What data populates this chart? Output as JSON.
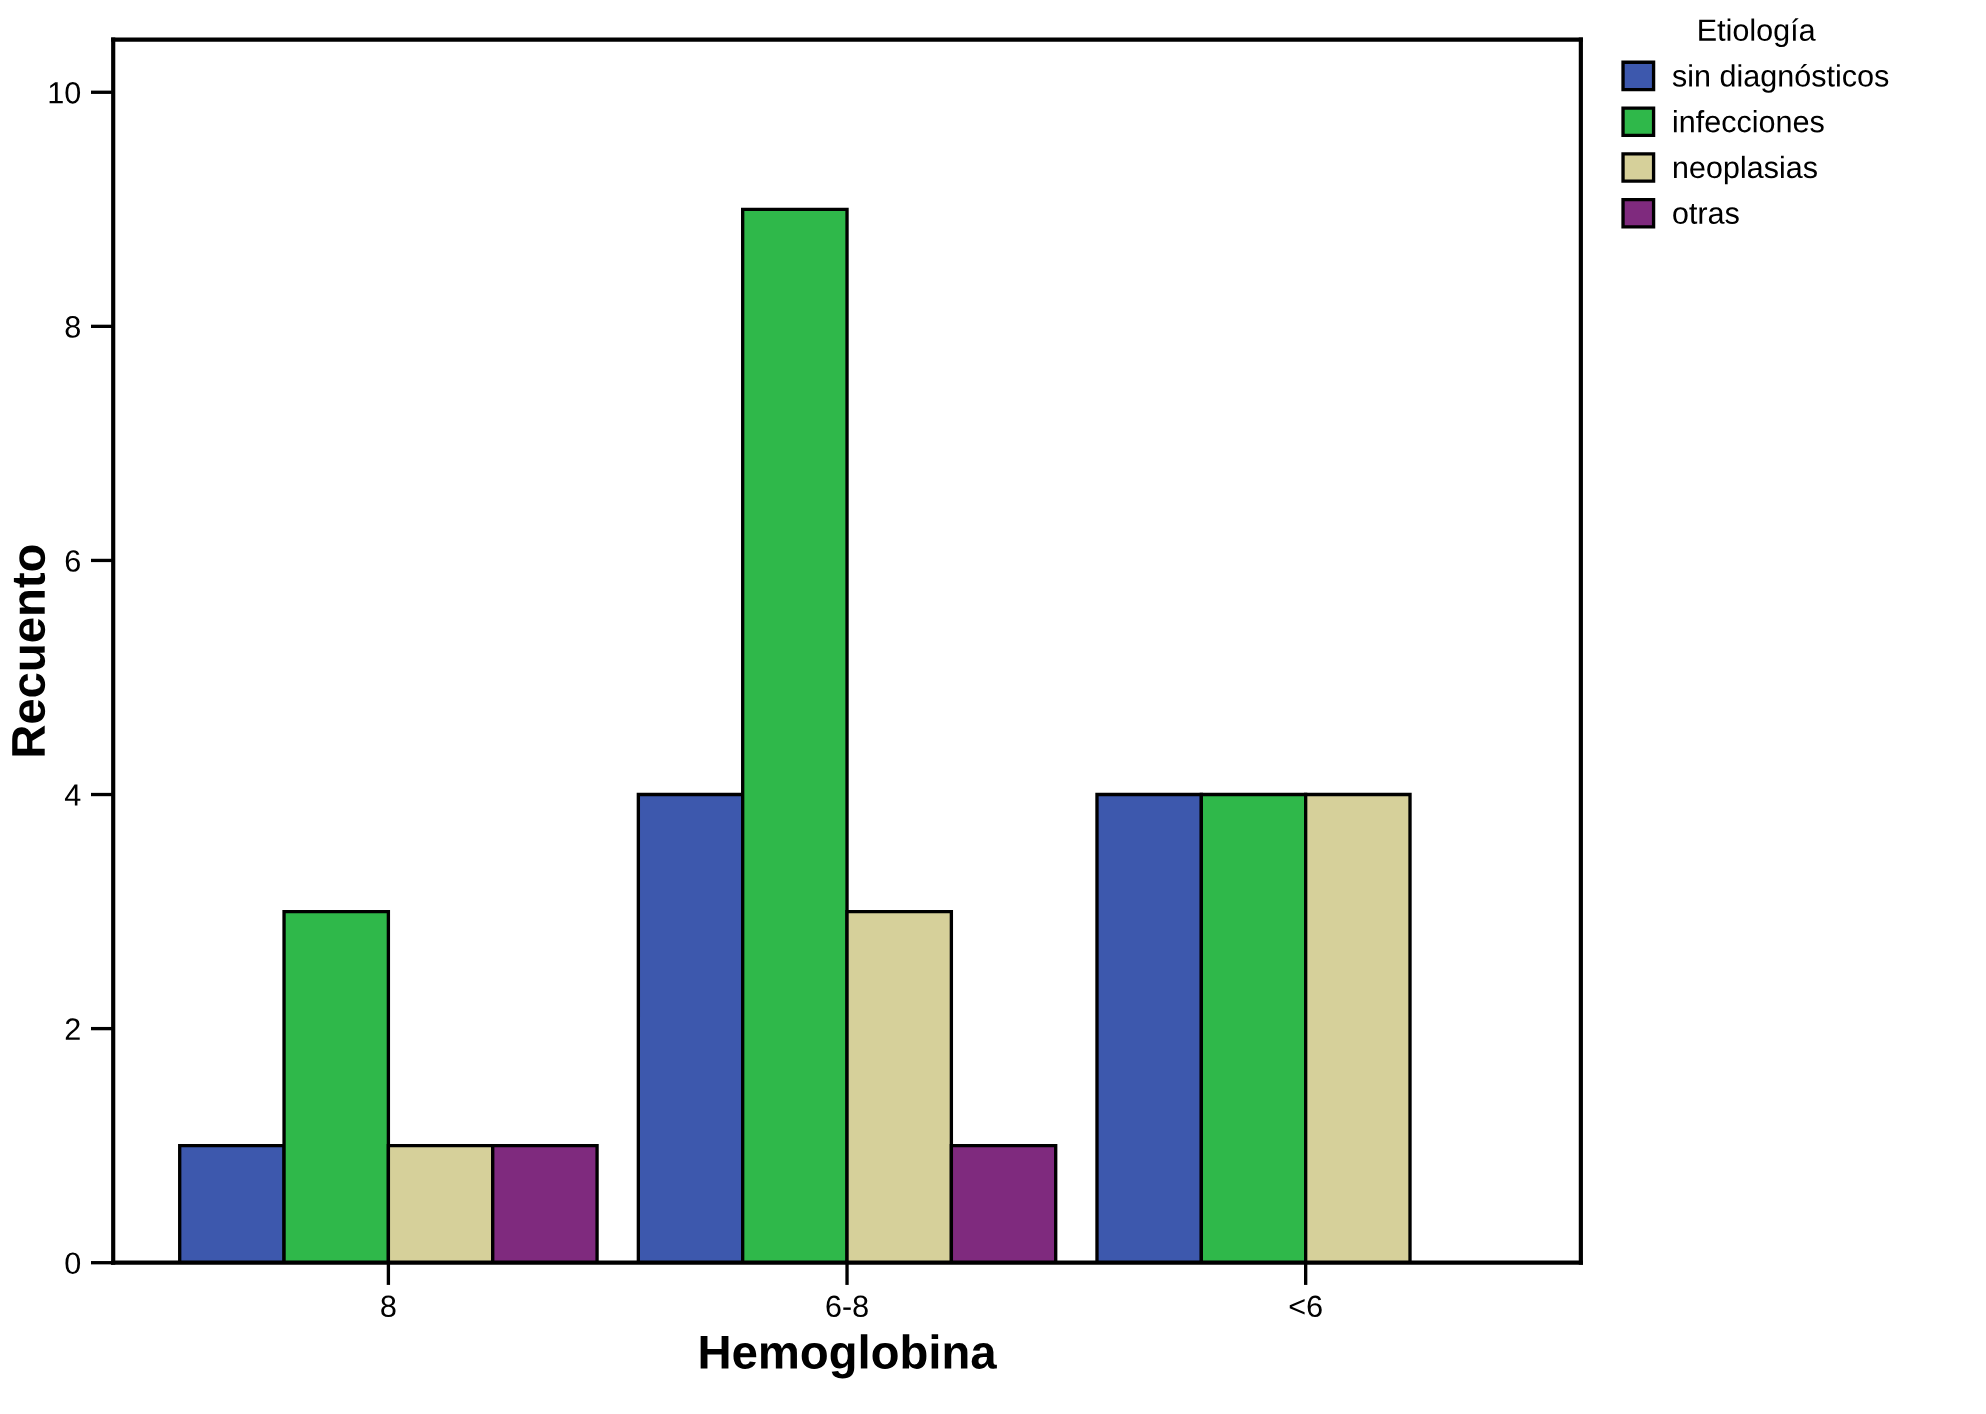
{
  "chart_data": {
    "type": "bar",
    "xlabel": "Hemoglobina",
    "ylabel": "Recuento",
    "legend_title": "Etiología",
    "categories": [
      "8",
      "6-8",
      "<6"
    ],
    "series": [
      {
        "name": "sin diagnósticos",
        "color": "#3d58ad",
        "values": [
          1,
          4,
          4
        ]
      },
      {
        "name": "infecciones",
        "color": "#2fb84a",
        "values": [
          3,
          9,
          4
        ]
      },
      {
        "name": "neoplasias",
        "color": "#d6d09a",
        "values": [
          1,
          3,
          4
        ]
      },
      {
        "name": "otras",
        "color": "#7f2a7e",
        "values": [
          1,
          1,
          null
        ]
      }
    ],
    "ylim": [
      0,
      10.45
    ],
    "yticks": [
      0,
      2,
      4,
      6,
      8,
      10
    ],
    "grid": false,
    "legend": "top right"
  }
}
